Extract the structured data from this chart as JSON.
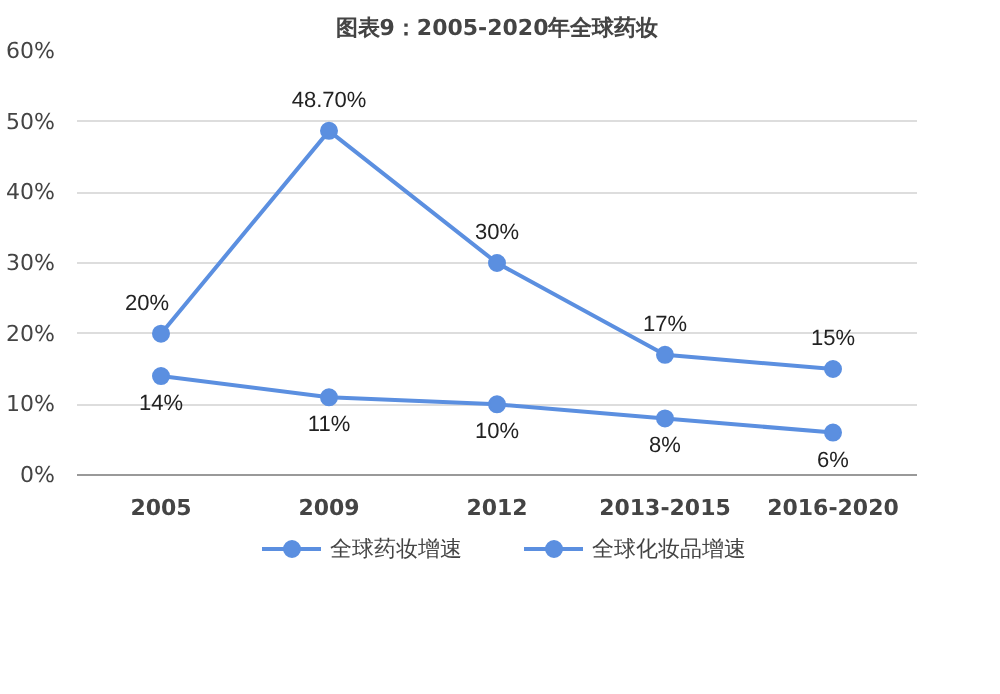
{
  "chart_data": {
    "type": "line",
    "title": "图表9：2005-2020年全球药妆",
    "categories": [
      "2005",
      "2009",
      "2012",
      "2013-2015",
      "2016-2020"
    ],
    "series": [
      {
        "name": "全球药妆增速",
        "color": "#5b8fe0",
        "values": [
          20,
          48.7,
          30,
          17,
          15
        ],
        "value_labels": [
          "20%",
          "48.70%",
          "30%",
          "17%",
          "15%"
        ]
      },
      {
        "name": "全球化妆品增速",
        "color": "#5b8fe0",
        "values": [
          14,
          11,
          10,
          8,
          6
        ],
        "value_labels": [
          "14%",
          "11%",
          "10%",
          "8%",
          "6%"
        ]
      }
    ],
    "ylim": [
      0,
      60
    ],
    "yticks": [
      {
        "value": 0,
        "label": "0%"
      },
      {
        "value": 10,
        "label": "10%"
      },
      {
        "value": 20,
        "label": "20%"
      },
      {
        "value": 30,
        "label": "30%"
      },
      {
        "value": 40,
        "label": "40%"
      },
      {
        "value": 50,
        "label": "50%"
      },
      {
        "value": 60,
        "label": "60%"
      }
    ],
    "grid": "y",
    "legend": "bottom",
    "marker": "circle",
    "line_style": "solid"
  }
}
